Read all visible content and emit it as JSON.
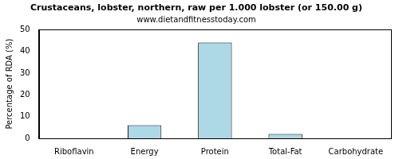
{
  "chart_data": {
    "type": "bar",
    "title": "Crustaceans, lobster, northern, raw per 1.000 lobster (or 150.00 g)",
    "subtitle": "www.dietandfitnesstoday.com",
    "y_label": "Percentage of RDA (%)",
    "categories": [
      "Riboflavin",
      "Energy",
      "Protein",
      "Total-Fat",
      "Carbohydrate"
    ],
    "values": [
      0,
      6,
      44,
      2,
      0
    ],
    "color": "#add8e6",
    "ylim": [
      0,
      50
    ],
    "yticks": [
      0,
      10,
      20,
      30,
      40,
      50
    ],
    "grid": false
  }
}
